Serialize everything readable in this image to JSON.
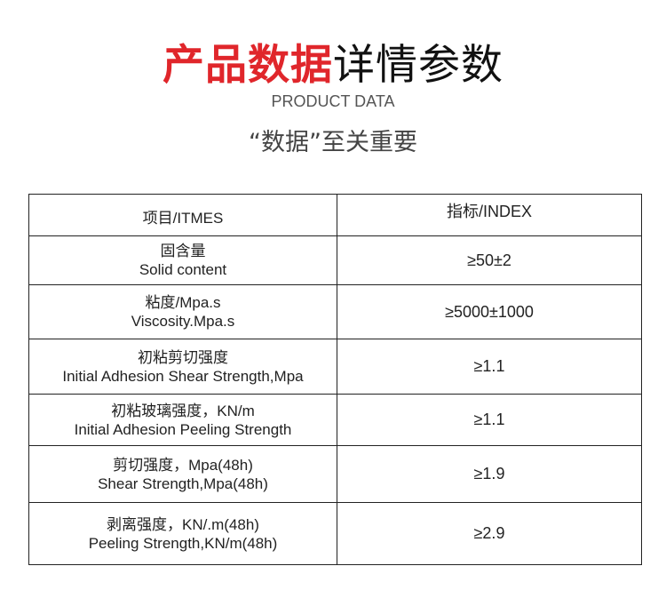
{
  "header": {
    "title_red": "产品数据",
    "title_black": "详情参数",
    "subtitle": "PRODUCT DATA",
    "tagline": "“数据”至关重要"
  },
  "table": {
    "columns": [
      "项目/ITMES",
      "指标/INDEX"
    ],
    "rows": [
      {
        "zh": "固含量",
        "en": "Solid content",
        "value": "≥50±2"
      },
      {
        "zh": "粘度/Mpa.s",
        "en": "Viscosity.Mpa.s",
        "value": "≥5000±1000"
      },
      {
        "zh": "初粘剪切强度",
        "en": "Initial Adhesion Shear Strength,Mpa",
        "value": "≥1.1"
      },
      {
        "zh": "初粘玻璃强度，KN/m",
        "en": "Initial Adhesion Peeling Strength",
        "value": "≥1.1"
      },
      {
        "zh": "剪切强度，Mpa(48h)",
        "en": "Shear Strength,Mpa(48h)",
        "value": "≥1.9"
      },
      {
        "zh": "剥离强度，KN/.m(48h)",
        "en": "Peeling Strength,KN/m(48h)",
        "value": "≥2.9"
      }
    ]
  }
}
